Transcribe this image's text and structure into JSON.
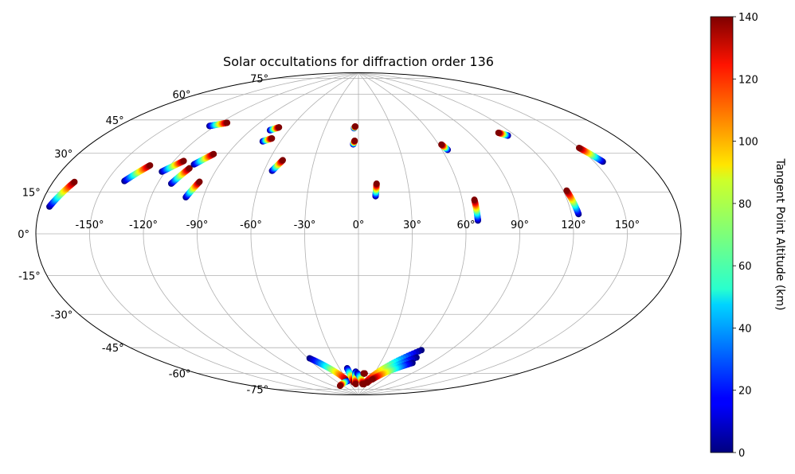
{
  "chart_data": {
    "type": "scatter",
    "projection": "aitoff",
    "title": "Solar occultations for diffraction order 136",
    "grid": true,
    "x_tick_labels": [
      "-150°",
      "-120°",
      "-90°",
      "-60°",
      "-30°",
      "0°",
      "30°",
      "60°",
      "90°",
      "120°",
      "150°"
    ],
    "y_tick_labels": [
      "75°",
      "60°",
      "45°",
      "30°",
      "15°",
      "0°",
      "-15°",
      "-30°",
      "-45°",
      "-60°",
      "-75°"
    ],
    "colorbar": {
      "label": "Tangent Point Altitude (km)",
      "range": [
        0,
        140
      ],
      "tick_labels": [
        "0",
        "20",
        "40",
        "60",
        "80",
        "100",
        "120",
        "140"
      ],
      "colormap": "jet"
    },
    "tracks": [
      {
        "lon_start": -175,
        "lat_start": 10,
        "lon_end": -168,
        "lat_end": 20,
        "alt_start": 0,
        "alt_end": 140
      },
      {
        "lon_start": -140,
        "lat_start": 23,
        "lon_end": -132,
        "lat_end": 31,
        "alt_start": 0,
        "alt_end": 140
      },
      {
        "lon_start": -124,
        "lat_start": 52,
        "lon_end": -115,
        "lat_end": 55,
        "alt_start": 0,
        "alt_end": 140
      },
      {
        "lon_start": -122,
        "lat_start": 29,
        "lon_end": -114,
        "lat_end": 35,
        "alt_start": 0,
        "alt_end": 140
      },
      {
        "lon_start": -112,
        "lat_start": 24,
        "lon_end": -107,
        "lat_end": 32,
        "alt_start": 0,
        "alt_end": 140
      },
      {
        "lon_start": -106,
        "lat_start": 34,
        "lon_end": -99,
        "lat_end": 40,
        "alt_start": 0,
        "alt_end": 140
      },
      {
        "lon_start": -100,
        "lat_start": 18,
        "lon_end": -96,
        "lat_end": 26,
        "alt_start": 0,
        "alt_end": 140
      },
      {
        "lon_start": -75,
        "lat_start": 55,
        "lon_end": -70,
        "lat_end": 57,
        "alt_start": 0,
        "alt_end": 140
      },
      {
        "lon_start": -73,
        "lat_start": 49,
        "lon_end": -68,
        "lat_end": 51,
        "alt_start": 0,
        "alt_end": 140
      },
      {
        "lon_start": -55,
        "lat_start": 34,
        "lon_end": -51,
        "lat_end": 40,
        "alt_start": 0,
        "alt_end": 140
      },
      {
        "lon_start": -4,
        "lat_start": 59,
        "lon_end": -3,
        "lat_end": 60,
        "alt_start": 0,
        "alt_end": 140
      },
      {
        "lon_start": -4,
        "lat_start": 50,
        "lon_end": -3,
        "lat_end": 52,
        "alt_start": 0,
        "alt_end": 140
      },
      {
        "lon_start": 10,
        "lat_start": 21,
        "lon_end": 11,
        "lat_end": 28,
        "alt_start": 0,
        "alt_end": 140
      },
      {
        "lon_start": 64,
        "lat_start": 45,
        "lon_end": 62,
        "lat_end": 48,
        "alt_start": 0,
        "alt_end": 140
      },
      {
        "lon_start": 67,
        "lat_start": 7,
        "lon_end": 67,
        "lat_end": 18,
        "alt_start": 0,
        "alt_end": 140
      },
      {
        "lon_start": 115,
        "lat_start": 48,
        "lon_end": 111,
        "lat_end": 50,
        "alt_start": 0,
        "alt_end": 140
      },
      {
        "lon_start": 124,
        "lat_start": 9,
        "lon_end": 122,
        "lat_end": 20,
        "alt_start": 0,
        "alt_end": 140
      },
      {
        "lon_start": 155,
        "lat_start": 30,
        "lon_end": 150,
        "lat_end": 37,
        "alt_start": 0,
        "alt_end": 140
      },
      {
        "lon_start": -58,
        "lat_start": -68,
        "lon_end": -30,
        "lat_end": -82,
        "alt_start": 0,
        "alt_end": 140
      },
      {
        "lon_start": -30,
        "lat_start": -82,
        "lon_end": -70,
        "lat_end": -84,
        "alt_start": 0,
        "alt_end": 140
      },
      {
        "lon_start": -18,
        "lat_start": -75,
        "lon_end": -15,
        "lat_end": -83,
        "alt_start": 0,
        "alt_end": 140
      },
      {
        "lon_start": -5,
        "lat_start": -77,
        "lon_end": -10,
        "lat_end": -84,
        "alt_start": 0,
        "alt_end": 140
      },
      {
        "lon_start": -2,
        "lat_start": -78,
        "lon_end": 15,
        "lat_end": -84,
        "alt_start": 0,
        "alt_end": 140
      },
      {
        "lon_start": 10,
        "lat_start": -78,
        "lon_end": 12,
        "lat_end": -78,
        "alt_start": 140,
        "alt_end": 140
      },
      {
        "lon_start": 64,
        "lat_start": -63,
        "lon_end": 20,
        "lat_end": -84,
        "alt_start": 0,
        "alt_end": 140
      },
      {
        "lon_start": 67,
        "lat_start": -67,
        "lon_end": 28,
        "lat_end": -83,
        "alt_start": 0,
        "alt_end": 140
      },
      {
        "lon_start": 70,
        "lat_start": -70,
        "lon_end": 35,
        "lat_end": -81,
        "alt_start": 0,
        "alt_end": 140
      }
    ]
  }
}
